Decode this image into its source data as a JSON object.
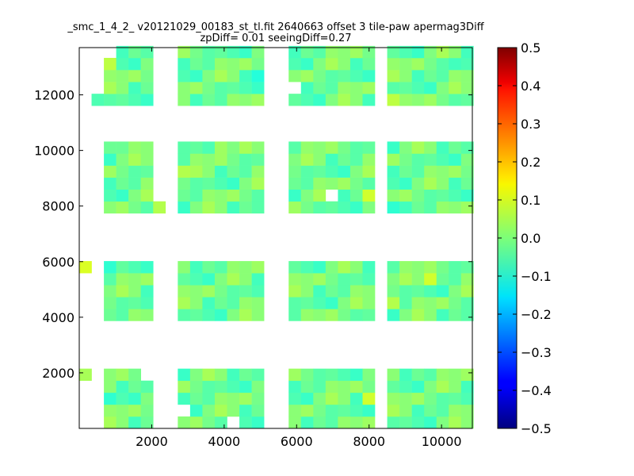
{
  "chart_data": {
    "type": "heatmap",
    "title_line1": "_smc_1_4_2_ v20121029_00183_st_tl.fit 2640663 offset 3 tile-paw apermag3Diff",
    "title_line2": "zpDiff= 0.01 seeingDiff=0.27",
    "xlabel": "",
    "ylabel": "",
    "xlim": [
      0,
      10850
    ],
    "ylim": [
      0,
      13700
    ],
    "x_ticks": [
      2000,
      4000,
      6000,
      8000,
      10000
    ],
    "x_tick_labels": [
      "2000",
      "4000",
      "6000",
      "8000",
      "10000"
    ],
    "y_ticks": [
      2000,
      4000,
      6000,
      8000,
      10000,
      12000
    ],
    "y_tick_labels": [
      "2000",
      "4000",
      "6000",
      "8000",
      "10000",
      "12000"
    ],
    "colorbar": {
      "min": -0.5,
      "max": 0.5,
      "colormap": "jet",
      "ticks": [
        -0.5,
        -0.4,
        -0.3,
        -0.2,
        -0.1,
        0.0,
        0.1,
        0.2,
        0.3,
        0.4,
        0.5
      ],
      "tick_labels": [
        "−0.5",
        "−0.4",
        "−0.3",
        "−0.2",
        "−0.1",
        "0.0",
        "0.1",
        "0.2",
        "0.3",
        "0.4",
        "0.5"
      ]
    },
    "cell_size": [
      340,
      430
    ],
    "cell_x_origin": 0,
    "cell_y_origin": 0,
    "detector_columns": [
      {
        "x_start": 680,
        "x_end": 2040
      },
      {
        "x_start": 2720,
        "x_end": 5100
      },
      {
        "x_start": 5780,
        "x_end": 8160
      },
      {
        "x_start": 8500,
        "x_end": 10850
      }
    ],
    "detector_rows": [
      {
        "y_start": 0,
        "y_end": 2150
      },
      {
        "y_start": 3870,
        "y_end": 6020
      },
      {
        "y_start": 7740,
        "y_end": 10320
      },
      {
        "y_start": 11610,
        "y_end": 13760
      }
    ],
    "base_value": -0.01,
    "value_variation": [
      -0.06,
      0.02,
      -0.03,
      0.04,
      -0.02,
      0.01,
      -0.05,
      0.03,
      0.0,
      -0.04,
      0.05,
      -0.01,
      0.02,
      -0.03
    ],
    "outlier_cells": [
      {
        "x": 200,
        "y": 2000,
        "value": 0.04
      },
      {
        "x": 850,
        "y": 1200,
        "value": -0.08
      },
      {
        "x": 7850,
        "y": 1200,
        "value": 0.08
      },
      {
        "x": 300,
        "y": 5900,
        "value": 0.09
      },
      {
        "x": 1000,
        "y": 5900,
        "value": -0.08
      },
      {
        "x": 9600,
        "y": 5300,
        "value": 0.08
      },
      {
        "x": 8700,
        "y": 4300,
        "value": 0.05
      },
      {
        "x": 8700,
        "y": 8000,
        "value": -0.08
      },
      {
        "x": 7850,
        "y": 8400,
        "value": 0.08
      },
      {
        "x": 2200,
        "y": 8000,
        "value": 0.05
      },
      {
        "x": 2800,
        "y": 9300,
        "value": 0.05
      },
      {
        "x": 3900,
        "y": 10200,
        "value": 0.03
      },
      {
        "x": 1200,
        "y": 10200,
        "value": -0.02
      },
      {
        "x": 850,
        "y": 13000,
        "value": 0.06
      },
      {
        "x": 4900,
        "y": 12600,
        "value": -0.09
      },
      {
        "x": 7600,
        "y": 12600,
        "value": -0.05
      },
      {
        "x": 8700,
        "y": 11800,
        "value": 0.06
      },
      {
        "x": 10500,
        "y": 11800,
        "value": -0.04
      },
      {
        "x": 10300,
        "y": 13000,
        "value": -0.06
      },
      {
        "x": 400,
        "y": 11800,
        "value": -0.05
      }
    ]
  }
}
